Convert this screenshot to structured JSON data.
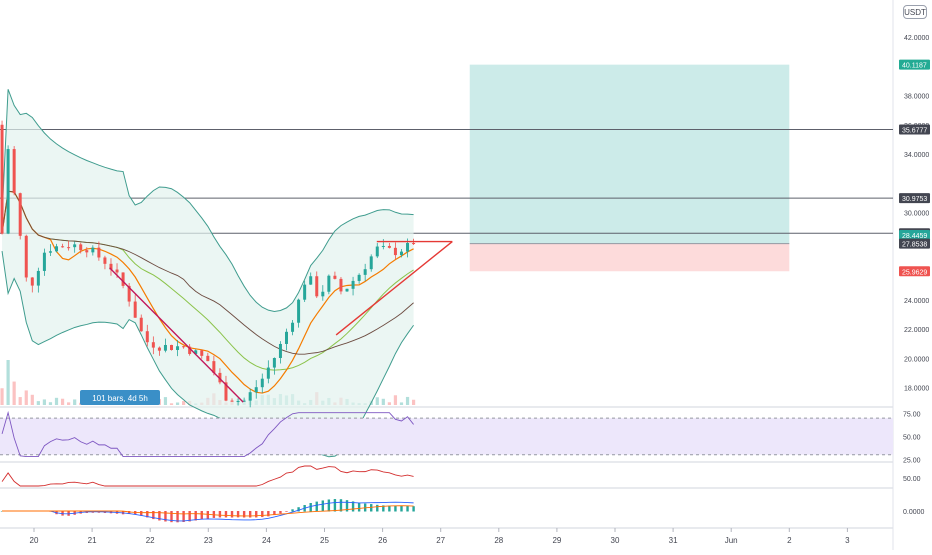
{
  "currency_label": "USDT",
  "bars_label": "101 bars, 4d 5h",
  "chart_data": {
    "type": "candlestick",
    "price_axis": {
      "ticks": [
        "42.0000",
        "38.0000",
        "36.0000",
        "34.0000",
        "30.0000",
        "28.0000",
        "24.0000",
        "22.0000",
        "20.0000",
        "18.0000"
      ],
      "ylim": [
        16.8,
        44.0
      ]
    },
    "price_labels": [
      {
        "text": "40.1187",
        "value": 40.1187,
        "color": "#22ab94"
      },
      {
        "text": "35.6777",
        "value": 35.6777,
        "color": "#434651"
      },
      {
        "text": "30.9753",
        "value": 30.9753,
        "color": "#434651"
      },
      {
        "text": "28.5653",
        "value": 28.5653,
        "color": "#434651"
      },
      {
        "text": "28.4459",
        "value": 28.4459,
        "color": "#26a69a",
        "extra": "49:49"
      },
      {
        "text": "27.8538",
        "value": 27.8538,
        "color": "#434651"
      },
      {
        "text": "25.9629",
        "value": 25.9629,
        "color": "#ef5350"
      }
    ],
    "horizontal_lines": [
      35.6777,
      30.9753,
      28.5653
    ],
    "x_axis": {
      "labels": [
        "20",
        "21",
        "22",
        "23",
        "24",
        "25",
        "26",
        "27",
        "28",
        "29",
        "30",
        "31",
        "Jun",
        "2",
        "3"
      ],
      "range": [
        "May 19 12:00",
        "Jun 3"
      ]
    },
    "position": {
      "entry": 27.8538,
      "target": 40.1187,
      "stop": 25.9629,
      "start_day": 27.5,
      "end_day": 33.0
    },
    "triangle": {
      "apex_day": 27.2,
      "apex_price": 28.0,
      "top_start_day": 25.9,
      "bottom_start_day": 25.2,
      "bottom_start_price": 21.6
    },
    "descending_trendline": {
      "from_day": 21.3,
      "from_price": 26.2,
      "to_day": 23.6,
      "to_price": 17.0
    },
    "volume_ylim": [
      0,
      6000
    ],
    "rsi": {
      "ticks": [
        "75.00",
        "50.00",
        "25.00"
      ],
      "ylim": [
        22,
        80
      ]
    },
    "osc2": {
      "ticks": [
        "50.00"
      ]
    },
    "macd": {
      "ticks": [
        "0.0000"
      ]
    },
    "colors": {
      "up": "#26a69a",
      "down": "#ef5350",
      "bb": "#3f9c8e",
      "ma_fast": "#f57c00",
      "ma_slow": "#6d4c41",
      "profit": "#bfe6e3",
      "loss": "#fdd7d7",
      "rsi_band": "#ede7fb",
      "rsi_line": "#7e57c2"
    }
  }
}
